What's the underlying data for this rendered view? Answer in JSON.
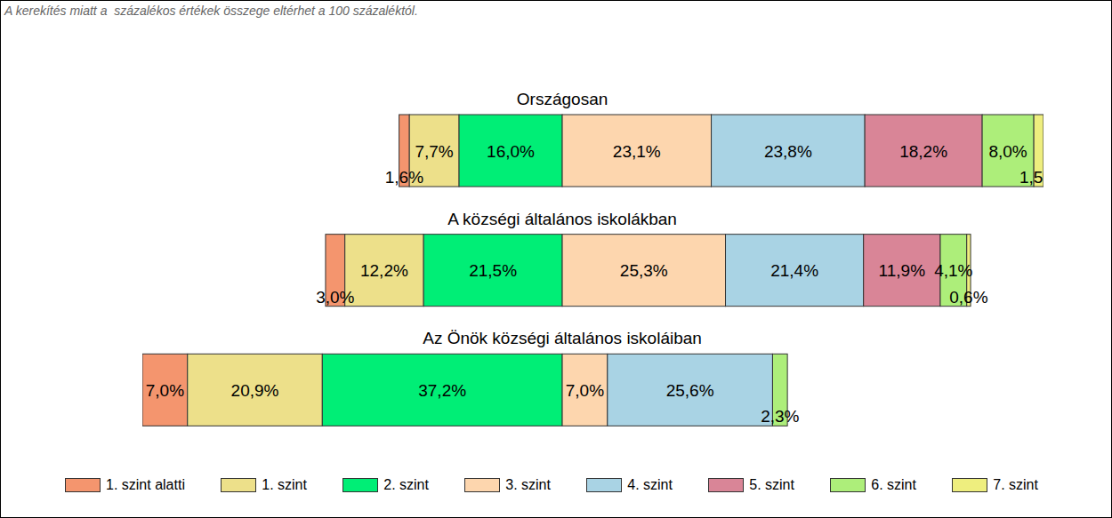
{
  "chart_data": {
    "type": "bar",
    "orientation": "horizontal",
    "stacked": true,
    "data_labels": true,
    "tick_labels": false,
    "legend": "bottom",
    "subtitle": "A kerekítés miatt a  százalékos értékek összege eltérhet a 100 százaléktól.",
    "categories": [
      "Országosan",
      "A községi általános iskolákban",
      "Az Önök községi általános iskoláiban"
    ],
    "series": [
      {
        "name": "1. szint alatti",
        "color": "#F4956E",
        "values": [
          1.6,
          3.0,
          7.0
        ],
        "value_labels": [
          "1,6%",
          "3,0%",
          "7,0%"
        ]
      },
      {
        "name": "1. szint",
        "color": "#EDE08A",
        "values": [
          7.7,
          12.2,
          20.9
        ],
        "value_labels": [
          "7,7%",
          "12,2%",
          "20,9%"
        ]
      },
      {
        "name": "2. szint",
        "color": "#00EE76",
        "values": [
          16.0,
          21.5,
          37.2
        ],
        "value_labels": [
          "16,0%",
          "21,5%",
          "37,2%"
        ]
      },
      {
        "name": "3. szint",
        "color": "#FDD6AE",
        "values": [
          23.1,
          25.3,
          7.0
        ],
        "value_labels": [
          "23,1%",
          "25,3%",
          "7,0%"
        ]
      },
      {
        "name": "4. szint",
        "color": "#A9D3E4",
        "values": [
          23.8,
          21.4,
          25.6
        ],
        "value_labels": [
          "23,8%",
          "21,4%",
          "25,6%"
        ]
      },
      {
        "name": "5. szint",
        "color": "#D98597",
        "values": [
          18.2,
          11.9,
          null
        ],
        "value_labels": [
          "18,2%",
          "11,9%",
          null
        ]
      },
      {
        "name": "6. szint",
        "color": "#ADEE7A",
        "values": [
          8.0,
          4.1,
          2.3
        ],
        "value_labels": [
          "8,0%",
          "4,1%",
          "2,3%"
        ]
      },
      {
        "name": "7. szint",
        "color": "#EEEE7E",
        "values": [
          1.5,
          0.6,
          null
        ],
        "value_labels": [
          "1,5%",
          "0,6%",
          null
        ]
      }
    ]
  }
}
